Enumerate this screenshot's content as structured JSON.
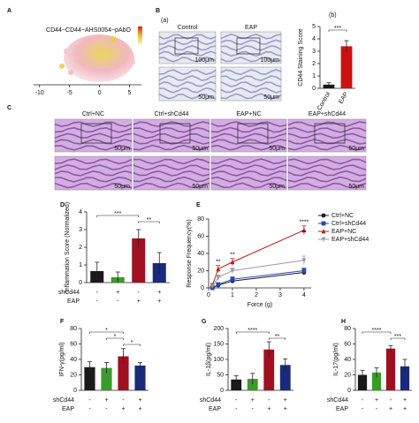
{
  "panel_labels": [
    "A",
    "B",
    "C",
    "D",
    "E",
    "F",
    "G",
    "H"
  ],
  "panel_a": {
    "title": "CD44~CD44~AHS0054~pAbO",
    "xlim": [
      -11,
      7
    ],
    "xticks": [
      -10,
      -5,
      0,
      5
    ]
  },
  "panel_b": {
    "sub_label": "(a)",
    "columns": [
      "Control",
      "EAP"
    ],
    "scale_bars": [
      "100μm",
      "50μm"
    ]
  },
  "panel_c": {
    "columns": [
      "Ctrl+NC",
      "Ctrl+shCd44",
      "EAP+NC",
      "EAP+shCd44"
    ],
    "scale_bar": "50μm"
  },
  "chart_data": [
    {
      "type": "bar",
      "label": "(b)",
      "y_label": "CD44 Staining Score",
      "categories": [
        "Control",
        "EAP"
      ],
      "values": [
        0.3,
        3.4
      ],
      "errors": [
        0.15,
        0.45
      ],
      "colors": [
        "#1a1a1a",
        "#cc1111"
      ],
      "ylim": [
        0,
        5
      ],
      "yticks": [
        0,
        1,
        2,
        3,
        4,
        5
      ],
      "significance": [
        {
          "label": "***",
          "from": 0,
          "to": 1
        }
      ]
    },
    {
      "type": "bar",
      "y_label": "Inflammation Score (Normalized)",
      "values": [
        0.65,
        0.3,
        2.5,
        1.1
      ],
      "errors": [
        0.5,
        0.3,
        0.5,
        0.6
      ],
      "colors": [
        "#1a1a1a",
        "#3a9a2a",
        "#a01020",
        "#1a2a7a"
      ],
      "ylim": [
        0,
        4
      ],
      "yticks": [
        0,
        1,
        2,
        3,
        4
      ],
      "conditions": [
        {
          "name": "shCd44",
          "marks": [
            "-",
            "+",
            "-",
            "+"
          ]
        },
        {
          "name": "EAP",
          "marks": [
            "-",
            "-",
            "+",
            "+"
          ]
        }
      ],
      "significance": [
        {
          "label": "***",
          "from": 0,
          "to": 2
        },
        {
          "label": "**",
          "from": 2,
          "to": 3
        }
      ]
    },
    {
      "type": "line",
      "x_label": "Force (g)",
      "y_label": "Response Frequency(%)",
      "x": [
        0.16,
        0.4,
        1,
        4
      ],
      "xlim": [
        0,
        4.3
      ],
      "xticks": [
        0,
        1,
        2,
        3,
        4
      ],
      "ylim": [
        0,
        80
      ],
      "yticks": [
        0,
        20,
        40,
        60,
        80
      ],
      "series": [
        {
          "name": "Ctrl+NC",
          "color": "#1a1a2a",
          "marker": "circle",
          "values": [
            0,
            3,
            8,
            18
          ],
          "errors": [
            1,
            2,
            2,
            3
          ]
        },
        {
          "name": "Ctrl+shCd44",
          "color": "#2a4ab0",
          "marker": "square",
          "values": [
            0,
            4,
            10,
            20
          ],
          "errors": [
            1,
            2,
            3,
            3
          ]
        },
        {
          "name": "EAP+NC",
          "color": "#c01818",
          "marker": "triangle",
          "values": [
            3,
            22,
            30,
            67
          ],
          "errors": [
            2,
            4,
            4,
            5
          ]
        },
        {
          "name": "EAP+shCd44",
          "color": "#9a9aa8",
          "marker": "triangle-down",
          "values": [
            2,
            12,
            20,
            32
          ],
          "errors": [
            1,
            3,
            3,
            5
          ]
        }
      ],
      "annotations": [
        {
          "text": "**",
          "x": 0.4
        },
        {
          "text": "**",
          "x": 1
        },
        {
          "text": "****",
          "x": 4
        },
        {
          "text": "**",
          "x": 4
        }
      ]
    },
    {
      "type": "bar",
      "y_label": "IFN-γ(pg/ml)",
      "values": [
        30,
        29,
        44,
        32
      ],
      "errors": [
        7,
        7,
        10,
        4
      ],
      "colors": [
        "#1a1a1a",
        "#3a9a2a",
        "#a01020",
        "#1a2a7a"
      ],
      "ylim": [
        0,
        80
      ],
      "yticks": [
        0,
        20,
        40,
        60,
        80
      ],
      "conditions": [
        {
          "name": "shCd44",
          "marks": [
            "-",
            "+",
            "-",
            "+"
          ]
        },
        {
          "name": "EAP",
          "marks": [
            "-",
            "-",
            "+",
            "+"
          ]
        }
      ],
      "significance": [
        {
          "label": "*",
          "from": 0,
          "to": 2
        },
        {
          "label": "*",
          "from": 1,
          "to": 2
        },
        {
          "label": "*",
          "from": 2,
          "to": 3
        }
      ]
    },
    {
      "type": "bar",
      "y_label": "IL-1β(pg/ml)",
      "values": [
        35,
        37,
        132,
        82
      ],
      "errors": [
        12,
        18,
        25,
        20
      ],
      "colors": [
        "#1a1a1a",
        "#3a9a2a",
        "#a01020",
        "#1a2a7a"
      ],
      "ylim": [
        0,
        200
      ],
      "yticks": [
        0,
        50,
        100,
        150,
        200
      ],
      "conditions": [
        {
          "name": "shCd44",
          "marks": [
            "-",
            "+",
            "-",
            "+"
          ]
        },
        {
          "name": "EAP",
          "marks": [
            "-",
            "-",
            "+",
            "+"
          ]
        }
      ],
      "significance": [
        {
          "label": "****",
          "from": 0,
          "to": 2
        },
        {
          "label": "**",
          "from": 2,
          "to": 3
        }
      ]
    },
    {
      "type": "bar",
      "y_label": "IL-17(pg/ml)",
      "values": [
        20,
        23,
        54,
        31
      ],
      "errors": [
        6,
        6,
        4,
        9
      ],
      "colors": [
        "#1a1a1a",
        "#3a9a2a",
        "#a01020",
        "#1a2a7a"
      ],
      "ylim": [
        0,
        80
      ],
      "yticks": [
        0,
        20,
        40,
        60,
        80
      ],
      "conditions": [
        {
          "name": "shCd44",
          "marks": [
            "-",
            "+",
            "-",
            "+"
          ]
        },
        {
          "name": "EAP",
          "marks": [
            "-",
            "-",
            "+",
            "+"
          ]
        }
      ],
      "significance": [
        {
          "label": "****",
          "from": 0,
          "to": 2
        },
        {
          "label": "***",
          "from": 2,
          "to": 3
        }
      ]
    }
  ]
}
